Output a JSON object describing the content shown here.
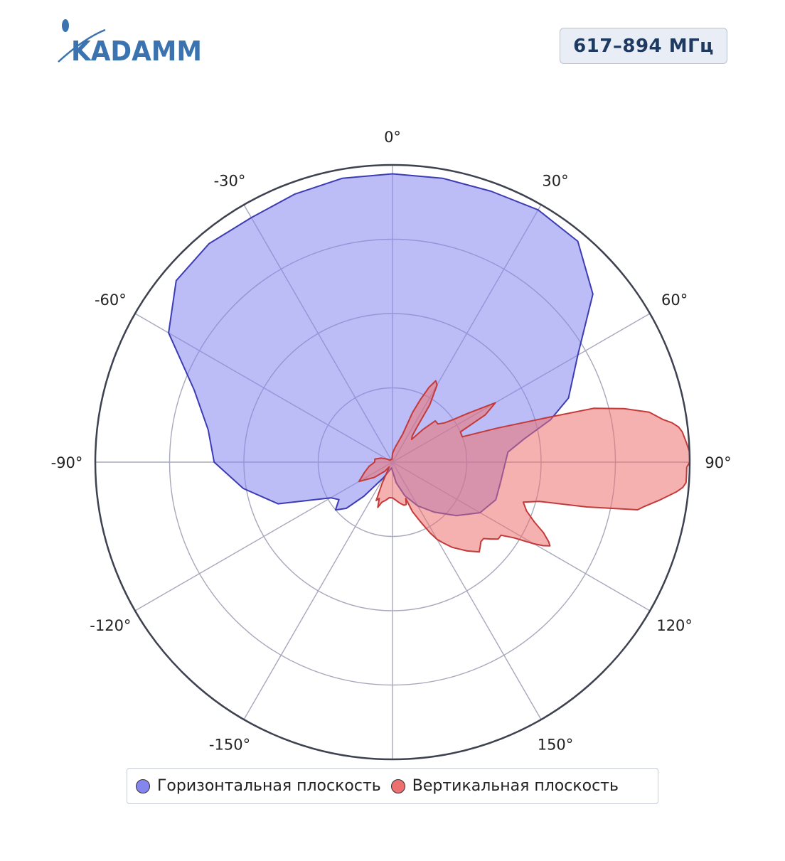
{
  "logo": {
    "text": "KADAMM",
    "color": "#3a73b0"
  },
  "badge": {
    "text": "617–894 МГц"
  },
  "chart_data": {
    "type": "polar-area",
    "angular_unit": "degrees",
    "direction": "clockwise",
    "zero_at": "top",
    "angular_ticks": [
      0,
      30,
      60,
      90,
      120,
      150,
      180,
      -150,
      -120,
      -90,
      -60,
      -30
    ],
    "angular_tick_labels": [
      "0°",
      "30°",
      "60°",
      "90°",
      "120°",
      "150°",
      "",
      "-150°",
      "-120°",
      "-90°",
      "-60°",
      "-30°"
    ],
    "radial_range": [
      0,
      1
    ],
    "radial_gridlines": [
      0.25,
      0.5,
      0.75,
      1.0
    ],
    "grid": true,
    "legend_position": "bottom",
    "series": [
      {
        "name": "Горизонтальная плоскость",
        "color": "#8585f0",
        "line_color": "#3c3cb4",
        "theta": [
          0,
          10,
          20,
          30,
          40,
          50,
          60,
          70,
          75,
          80,
          85,
          90,
          100,
          110,
          120,
          130,
          140,
          150,
          160,
          170,
          180,
          190,
          200,
          210,
          220,
          225,
          230,
          235,
          240,
          250,
          260,
          270,
          280,
          290,
          300,
          310,
          320,
          330,
          340,
          350
        ],
        "r": [
          0.97,
          0.97,
          0.97,
          0.98,
          0.97,
          0.88,
          0.72,
          0.63,
          0.55,
          0.45,
          0.39,
          0.38,
          0.37,
          0.37,
          0.34,
          0.28,
          0.22,
          0.17,
          0.12,
          0.07,
          0.03,
          0.02,
          0.03,
          0.06,
          0.15,
          0.22,
          0.25,
          0.22,
          0.24,
          0.41,
          0.51,
          0.6,
          0.63,
          0.71,
          0.87,
          0.95,
          0.96,
          0.95,
          0.96,
          0.97
        ]
      },
      {
        "name": "Вертикальная плоскость",
        "color": "#ec7070",
        "line_color": "#c43a3a",
        "theta": [
          0,
          10,
          20,
          22,
          24,
          26,
          28,
          30,
          33,
          35,
          37,
          40,
          43,
          46,
          50,
          53,
          55,
          57,
          60,
          63,
          66,
          70,
          72,
          74,
          75,
          77,
          79,
          80,
          81,
          82,
          83,
          84,
          86,
          88,
          90,
          91,
          92,
          93,
          94,
          95,
          96,
          98,
          100,
          101,
          103,
          105,
          107,
          110,
          113,
          115,
          117,
          118,
          119,
          120,
          122,
          124,
          126,
          128,
          130,
          132,
          134,
          136,
          140,
          145,
          148,
          150,
          152,
          155,
          158,
          160,
          162,
          165,
          170,
          180,
          185,
          190,
          195,
          198,
          200,
          203,
          206,
          210,
          215,
          220,
          230,
          240,
          250,
          260,
          270,
          280,
          290,
          300,
          310,
          320,
          330,
          340,
          350
        ],
        "r": [
          0.03,
          0.05,
          0.1,
          0.18,
          0.23,
          0.28,
          0.31,
          0.3,
          0.23,
          0.14,
          0.11,
          0.1,
          0.15,
          0.2,
          0.2,
          0.22,
          0.25,
          0.3,
          0.4,
          0.35,
          0.25,
          0.25,
          0.37,
          0.55,
          0.7,
          0.8,
          0.88,
          0.9,
          0.92,
          0.95,
          0.97,
          0.98,
          0.99,
          1.0,
          1.0,
          0.99,
          0.99,
          0.99,
          0.99,
          0.98,
          0.96,
          0.91,
          0.86,
          0.84,
          0.67,
          0.51,
          0.46,
          0.48,
          0.52,
          0.56,
          0.59,
          0.6,
          0.58,
          0.55,
          0.48,
          0.44,
          0.44,
          0.42,
          0.4,
          0.4,
          0.41,
          0.42,
          0.39,
          0.35,
          0.32,
          0.3,
          0.27,
          0.22,
          0.18,
          0.13,
          0.15,
          0.15,
          0.14,
          0.12,
          0.12,
          0.13,
          0.14,
          0.16,
          0.13,
          0.14,
          0.08,
          0.03,
          0.02,
          0.04,
          0.08,
          0.13,
          0.1,
          0.08,
          0.06,
          0.06,
          0.04,
          0.02,
          0.01,
          0.01,
          0.01,
          0.01,
          0.01
        ]
      }
    ]
  }
}
